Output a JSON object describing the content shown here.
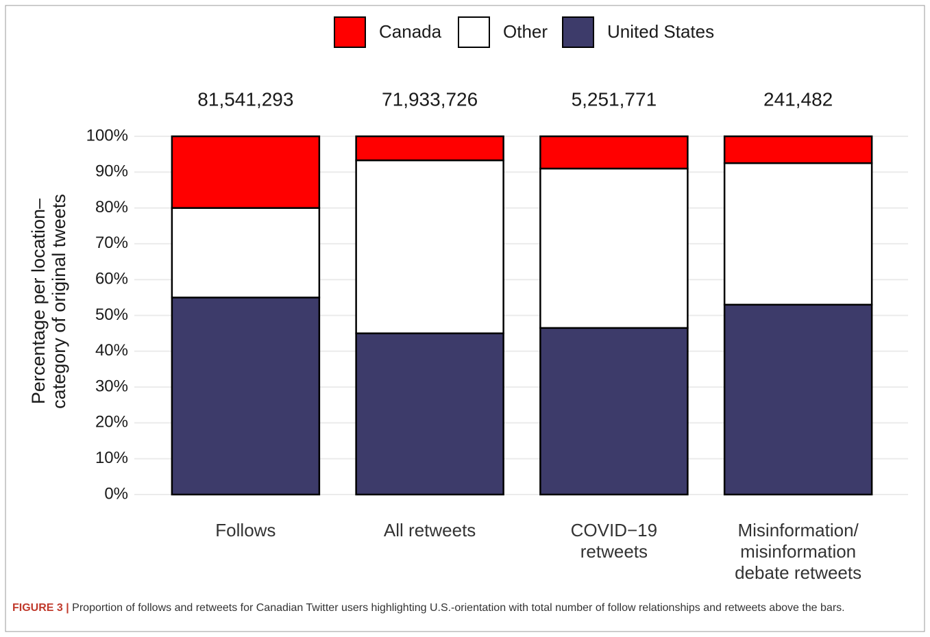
{
  "chart_data": {
    "type": "stacked_bar",
    "y_label": "Percentage per location–\ncategory of original tweets",
    "categories": [
      "Follows",
      "All retweets",
      "COVID−19\nretweets",
      "Misinformation/\nmisinformation\ndebate retweets"
    ],
    "totals": [
      {
        "value": 81541293,
        "label": "81,541,293"
      },
      {
        "value": 71933726,
        "label": "71,933,726"
      },
      {
        "value": 5251771,
        "label": "5,251,771"
      },
      {
        "value": 241482,
        "label": "241,482"
      }
    ],
    "series": [
      {
        "name": "Canada",
        "color": "#ff0000",
        "values": [
          20,
          6.7,
          9,
          7.5
        ]
      },
      {
        "name": "Other",
        "color": "#ffffff",
        "values": [
          25,
          48.3,
          44.5,
          39.5
        ]
      },
      {
        "name": "United States",
        "color": "#3d3b6a",
        "values": [
          55,
          45,
          46.5,
          53
        ]
      }
    ],
    "ylim": [
      0,
      100
    ],
    "yticks": [
      {
        "value": 0,
        "label": "0%"
      },
      {
        "value": 10,
        "label": "10%"
      },
      {
        "value": 20,
        "label": "20%"
      },
      {
        "value": 30,
        "label": "30%"
      },
      {
        "value": 40,
        "label": "40%"
      },
      {
        "value": 50,
        "label": "50%"
      },
      {
        "value": 60,
        "label": "60%"
      },
      {
        "value": 70,
        "label": "70%"
      },
      {
        "value": 80,
        "label": "80%"
      },
      {
        "value": 90,
        "label": "90%"
      },
      {
        "value": 100,
        "label": "100%"
      }
    ],
    "grid": true,
    "legend": "top"
  },
  "caption": {
    "label": "FIGURE 3 |",
    "text": "Proportion of follows and retweets for Canadian Twitter users highlighting U.S.-orientation with total number of follow relationships and retweets above the bars."
  }
}
